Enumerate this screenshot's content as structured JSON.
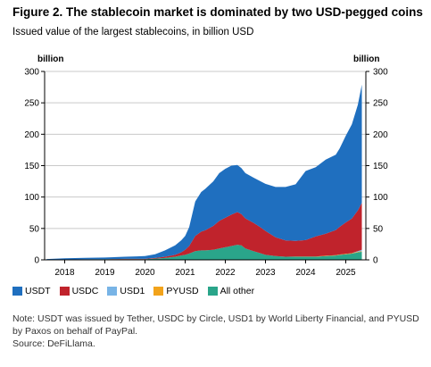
{
  "title": "Figure 2. The stablecoin market is dominated by two USD-pegged coins",
  "subtitle": "Issued value of the largest stablecoins, in billion USD",
  "note": "Note: USDT was issued by Tether, USDC by Circle, USD1 by World Liberty Financial, and PYUSD by Paxos on behalf of PayPal.",
  "source": "Source: DeFiLlama.",
  "colors": {
    "USDT": "#1f6fbf",
    "USDC": "#c0232c",
    "USD1": "#78b4e6",
    "PYUSD": "#f2a31b",
    "All other": "#2aa58a",
    "grid": "#c9c9c9"
  },
  "chart_data": {
    "type": "area",
    "stacked": true,
    "ylabel_left": "billion",
    "ylabel_right": "billion",
    "ylim": [
      0,
      300
    ],
    "yticks": [
      0,
      50,
      100,
      150,
      200,
      250,
      300
    ],
    "xticks": [
      "2018",
      "2019",
      "2020",
      "2021",
      "2022",
      "2023",
      "2024",
      "2025"
    ],
    "xlim": [
      2017.5,
      2025.5
    ],
    "grid": true,
    "legend_position": "bottom",
    "x": [
      2017.55,
      2018.0,
      2018.5,
      2019.0,
      2019.5,
      2019.8,
      2020.0,
      2020.25,
      2020.5,
      2020.75,
      2020.9,
      2021.0,
      2021.1,
      2021.25,
      2021.4,
      2021.5,
      2021.7,
      2021.85,
      2022.0,
      2022.15,
      2022.3,
      2022.4,
      2022.5,
      2022.7,
      2022.85,
      2023.0,
      2023.25,
      2023.5,
      2023.75,
      2024.0,
      2024.25,
      2024.5,
      2024.75,
      2024.85,
      2025.0,
      2025.15,
      2025.3,
      2025.4
    ],
    "series": [
      {
        "name": "All other",
        "values": [
          0.3,
          0.5,
          0.8,
          1,
          1,
          1,
          1,
          2,
          3,
          5,
          7,
          8,
          10,
          14,
          15,
          15,
          16,
          18,
          20,
          22,
          24,
          23,
          18,
          14,
          11,
          8,
          6,
          5,
          5,
          5,
          5,
          6,
          7,
          8,
          9,
          10,
          12,
          13
        ]
      },
      {
        "name": "PYUSD",
        "values": [
          0,
          0,
          0,
          0,
          0,
          0,
          0,
          0,
          0,
          0,
          0,
          0,
          0,
          0,
          0,
          0,
          0,
          0,
          0,
          0,
          0,
          0,
          0,
          0,
          0,
          0,
          0,
          0,
          0.3,
          0.4,
          0.4,
          0.5,
          0.5,
          0.6,
          0.6,
          0.7,
          0.8,
          0.9
        ]
      },
      {
        "name": "USD1",
        "values": [
          0,
          0,
          0,
          0,
          0,
          0,
          0,
          0,
          0,
          0,
          0,
          0,
          0,
          0,
          0,
          0,
          0,
          0,
          0,
          0,
          0,
          0,
          0,
          0,
          0,
          0,
          0,
          0,
          0,
          0,
          0,
          0,
          0,
          0,
          0,
          0,
          1,
          2
        ]
      },
      {
        "name": "USDC",
        "values": [
          0,
          0,
          0,
          0.2,
          0.5,
          0.5,
          0.6,
          1,
          2,
          3,
          5,
          8,
          12,
          24,
          30,
          32,
          38,
          44,
          47,
          50,
          52,
          50,
          48,
          45,
          42,
          38,
          30,
          26,
          25,
          26,
          32,
          35,
          40,
          44,
          50,
          55,
          65,
          75
        ]
      },
      {
        "name": "USDT",
        "values": [
          1,
          2,
          2.5,
          2.5,
          3.5,
          4,
          4.5,
          6,
          10,
          15,
          19,
          22,
          30,
          55,
          63,
          66,
          71,
          76,
          78,
          78,
          75,
          73,
          72,
          72,
          73,
          75,
          80,
          85,
          90,
          110,
          110,
          118,
          120,
          125,
          138,
          150,
          168,
          188
        ]
      }
    ]
  }
}
